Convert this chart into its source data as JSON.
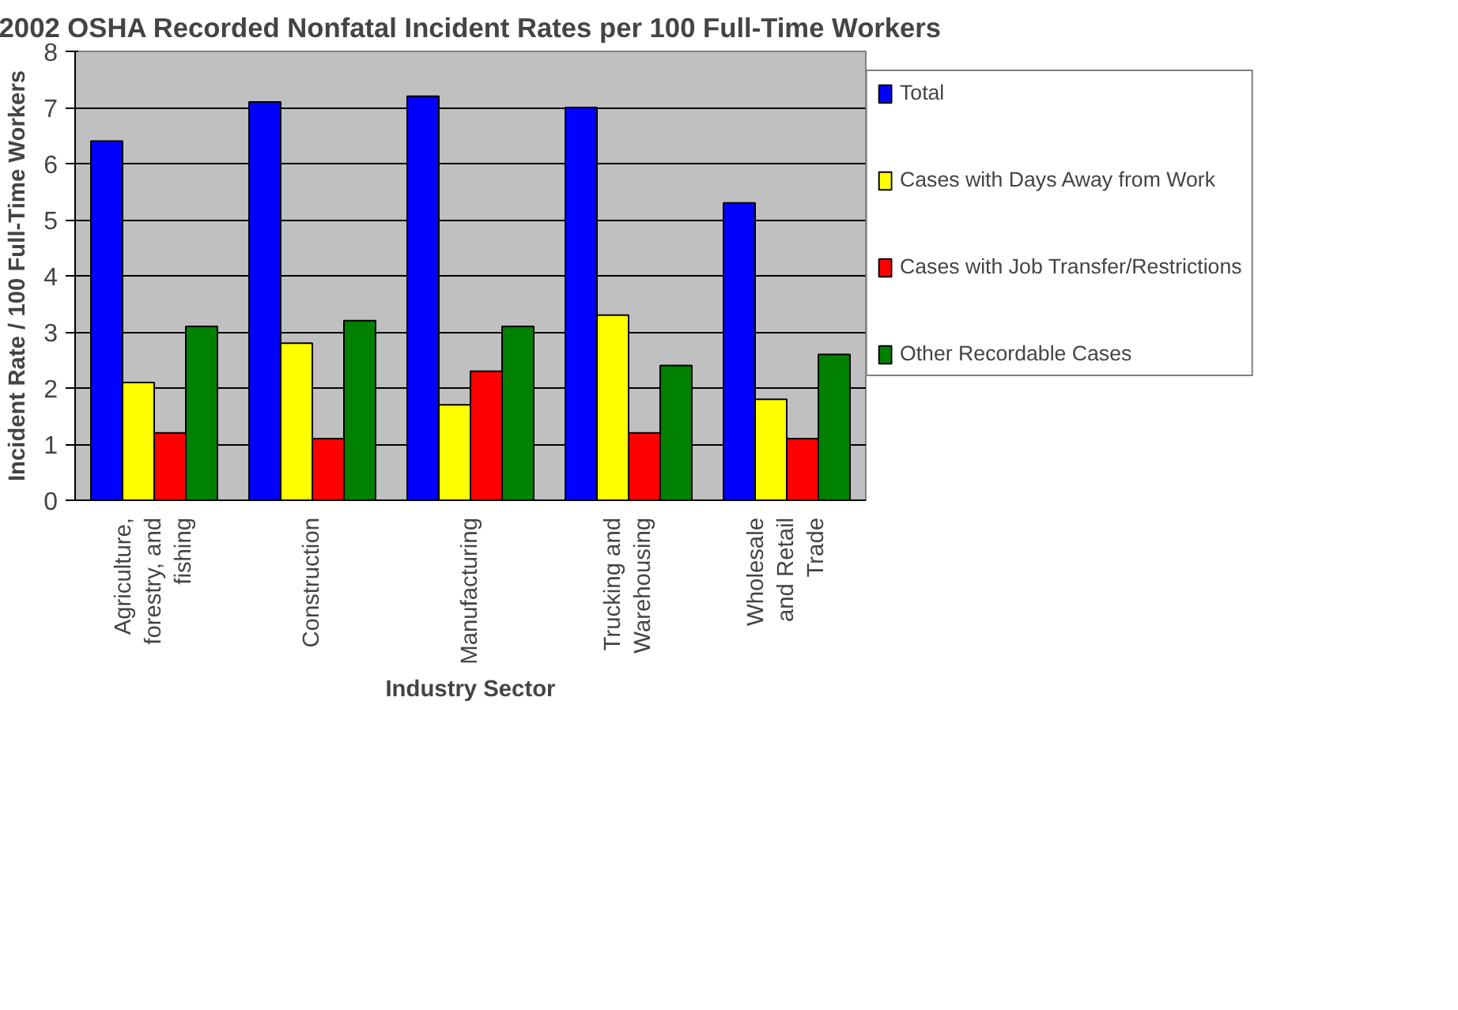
{
  "chart_data": {
    "type": "bar",
    "title": "2002 OSHA Recorded Nonfatal Incident Rates per 100 Full-Time Workers",
    "xlabel": "Industry Sector",
    "ylabel": "Incident Rate / 100 Full-Time Workers",
    "categories": [
      "Agriculture,\nforestry, and\nfishing",
      "Construction",
      "Manufacturing",
      "Trucking and\nWarehousing",
      "Wholesale\nand Retail\nTrade"
    ],
    "series": [
      {
        "name": "Total",
        "color": "#0000ff",
        "values": [
          6.4,
          7.1,
          7.2,
          7.0,
          5.3
        ]
      },
      {
        "name": "Cases with Days Away from Work",
        "color": "#ffff00",
        "values": [
          2.1,
          2.8,
          1.7,
          3.3,
          1.8
        ]
      },
      {
        "name": "Cases with Job Transfer/Restrictions",
        "color": "#ff0000",
        "values": [
          1.2,
          1.1,
          2.3,
          1.2,
          1.1
        ]
      },
      {
        "name": "Other Recordable Cases",
        "color": "#008000",
        "values": [
          3.1,
          3.2,
          3.1,
          2.4,
          2.6
        ]
      }
    ],
    "ylim": [
      0,
      8
    ],
    "yticks": [
      0,
      1,
      2,
      3,
      4,
      5,
      6,
      7,
      8
    ],
    "grid": "y",
    "legend": "right"
  }
}
